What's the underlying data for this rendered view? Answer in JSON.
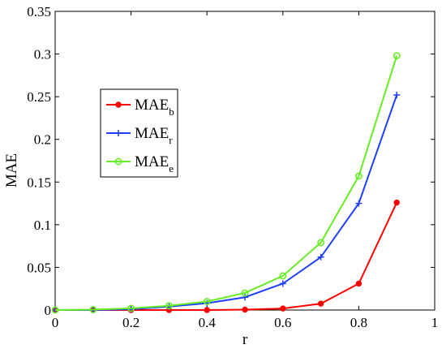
{
  "chart_data": {
    "type": "line",
    "title": "",
    "xlabel": "r",
    "ylabel": "MAE",
    "xlim": [
      0,
      1
    ],
    "ylim": [
      0,
      0.35
    ],
    "x_ticks": [
      "0",
      "0.2",
      "0.4",
      "0.6",
      "0.8",
      "1"
    ],
    "y_ticks": [
      "0",
      "0.05",
      "0.1",
      "0.15",
      "0.2",
      "0.25",
      "0.3",
      "0.35"
    ],
    "grid": false,
    "legend_position": "upper-left",
    "x": [
      0,
      0.1,
      0.2,
      0.3,
      0.4,
      0.5,
      0.6,
      0.7,
      0.8,
      0.9
    ],
    "series": [
      {
        "name": "MAE",
        "subscript": "b",
        "color": "#ff0000",
        "marker": "dot",
        "values": [
          0,
          0,
          0,
          0,
          0,
          0.0005,
          0.0018,
          0.0075,
          0.031,
          0.126
        ]
      },
      {
        "name": "MAE",
        "subscript": "r",
        "color": "#1f3fff",
        "marker": "plus",
        "values": [
          0,
          0,
          0.001,
          0.004,
          0.008,
          0.015,
          0.031,
          0.062,
          0.125,
          0.252
        ]
      },
      {
        "name": "MAE",
        "subscript": "e",
        "color": "#66ee22",
        "marker": "circle",
        "values": [
          0,
          0.0005,
          0.002,
          0.005,
          0.01,
          0.02,
          0.04,
          0.079,
          0.157,
          0.298
        ]
      }
    ]
  }
}
